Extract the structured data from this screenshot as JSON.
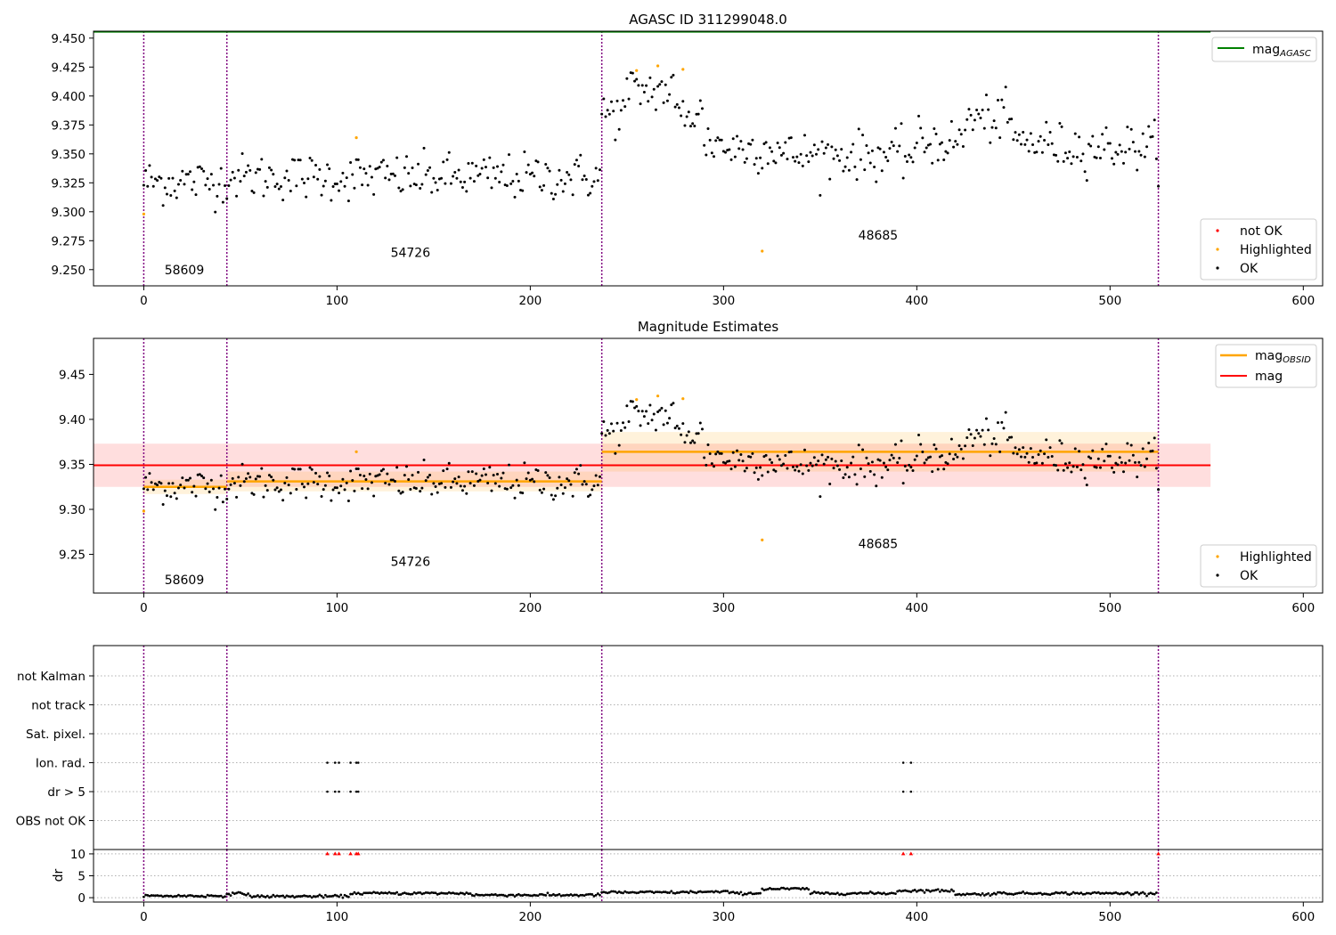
{
  "chart_data": [
    {
      "type": "scatter",
      "title": "AGASC ID 311299048.0",
      "xlim": [
        -26,
        610
      ],
      "ylim": [
        9.236,
        9.456
      ],
      "xticks": [
        0,
        100,
        200,
        300,
        400,
        500,
        600
      ],
      "yticks": [
        9.25,
        9.275,
        9.3,
        9.325,
        9.35,
        9.375,
        9.4,
        9.425,
        9.45
      ],
      "ytick_labels": [
        "9.250",
        "9.275",
        "9.300",
        "9.325",
        "9.350",
        "9.375",
        "9.400",
        "9.425",
        "9.450"
      ],
      "obs_boundaries": [
        0,
        43,
        237,
        525
      ],
      "obs_labels": [
        {
          "text": "58609",
          "x": 21,
          "y": 9.246
        },
        {
          "text": "54726",
          "x": 138,
          "y": 9.261
        },
        {
          "text": "48685",
          "x": 380,
          "y": 9.276
        }
      ],
      "mag_agasc": 9.4555,
      "mag_agasc_xrange": [
        -26,
        552
      ],
      "highlighted_points": [
        [
          0,
          9.298
        ],
        [
          110,
          9.364
        ],
        [
          255,
          9.422
        ],
        [
          266,
          9.426
        ],
        [
          279,
          9.423
        ],
        [
          320,
          9.266
        ]
      ],
      "not_ok_points": [],
      "legends": [
        {
          "position": "top-right",
          "entries": [
            {
              "label": "mag",
              "sub": "AGASC",
              "color": "#008000",
              "kind": "line"
            }
          ]
        },
        {
          "position": "bottom-right",
          "entries": [
            {
              "label": "not OK",
              "color": "#ff0000",
              "kind": "dot"
            },
            {
              "label": "Highlighted",
              "color": "#ffa500",
              "kind": "dot"
            },
            {
              "label": "OK",
              "color": "#000000",
              "kind": "dot"
            }
          ]
        }
      ]
    },
    {
      "type": "scatter",
      "title": "Magnitude Estimates",
      "xlim": [
        -26,
        610
      ],
      "ylim": [
        9.207,
        9.49
      ],
      "xticks": [
        0,
        100,
        200,
        300,
        400,
        500,
        600
      ],
      "yticks": [
        9.25,
        9.3,
        9.35,
        9.4,
        9.45
      ],
      "ytick_labels": [
        "9.25",
        "9.30",
        "9.35",
        "9.40",
        "9.45"
      ],
      "obs_boundaries": [
        0,
        43,
        237,
        525
      ],
      "obs_labels": [
        {
          "text": "58609",
          "x": 21,
          "y": 9.217
        },
        {
          "text": "54726",
          "x": 138,
          "y": 9.237
        },
        {
          "text": "48685",
          "x": 380,
          "y": 9.257
        }
      ],
      "mag": {
        "value": 9.349,
        "err": 0.024,
        "xrange": [
          -26,
          552
        ]
      },
      "mag_obsid": [
        {
          "x0": 0,
          "x1": 43,
          "value": 9.325,
          "err": 0.008
        },
        {
          "x0": 43,
          "x1": 237,
          "value": 9.331,
          "err": 0.011
        },
        {
          "x0": 237,
          "x1": 525,
          "value": 9.364,
          "err": 0.022
        }
      ],
      "highlighted_points": [
        [
          0,
          9.298
        ],
        [
          110,
          9.364
        ],
        [
          255,
          9.422
        ],
        [
          266,
          9.426
        ],
        [
          279,
          9.423
        ],
        [
          320,
          9.266
        ]
      ],
      "legends": [
        {
          "position": "top-right",
          "entries": [
            {
              "label": "mag",
              "sub": "OBSID",
              "color": "#ffa500",
              "kind": "line"
            },
            {
              "label": "mag",
              "sub": "",
              "color": "#ff0000",
              "kind": "line"
            }
          ]
        },
        {
          "position": "bottom-right",
          "entries": [
            {
              "label": "Highlighted",
              "color": "#ffa500",
              "kind": "dot"
            },
            {
              "label": "OK",
              "color": "#000000",
              "kind": "dot"
            }
          ]
        }
      ]
    },
    {
      "type": "scatter",
      "xlim": [
        -26,
        610
      ],
      "xticks": [
        0,
        100,
        200,
        300,
        400,
        500,
        600
      ],
      "obs_boundaries": [
        0,
        43,
        237,
        525
      ],
      "flag_rows": [
        "not Kalman",
        "not track",
        "Sat. pixel.",
        "Ion. rad.",
        "dr > 5",
        "OBS not OK"
      ],
      "flag_points": {
        "Ion. rad.": [
          95,
          99,
          101,
          107,
          110,
          111,
          393,
          397
        ],
        "dr > 5": [
          95,
          99,
          101,
          107,
          110,
          111,
          393,
          397
        ]
      },
      "dr": {
        "ylabel": "dr",
        "ylim": [
          -1,
          11
        ],
        "yticks": [
          0,
          5,
          10
        ],
        "flagged_x": [
          95,
          99,
          101,
          107,
          110,
          111,
          393,
          397,
          525
        ],
        "segments": [
          {
            "x": [
              0,
              43
            ],
            "mean": 0.4
          },
          {
            "x": [
              43,
              55
            ],
            "mean": 0.9
          },
          {
            "x": [
              55,
              107
            ],
            "mean": 0.3
          },
          {
            "x": [
              107,
              170
            ],
            "mean": 1.0
          },
          {
            "x": [
              170,
              237
            ],
            "mean": 0.6
          },
          {
            "x": [
              237,
              282
            ],
            "mean": 1.2
          },
          {
            "x": [
              282,
              305
            ],
            "mean": 1.3
          },
          {
            "x": [
              305,
              320
            ],
            "mean": 1.0
          },
          {
            "x": [
              320,
              345
            ],
            "mean": 2.0
          },
          {
            "x": [
              345,
              390
            ],
            "mean": 1.0
          },
          {
            "x": [
              390,
              420
            ],
            "mean": 1.6
          },
          {
            "x": [
              420,
              440
            ],
            "mean": 0.8
          },
          {
            "x": [
              440,
              525
            ],
            "mean": 1.0
          }
        ]
      }
    }
  ]
}
